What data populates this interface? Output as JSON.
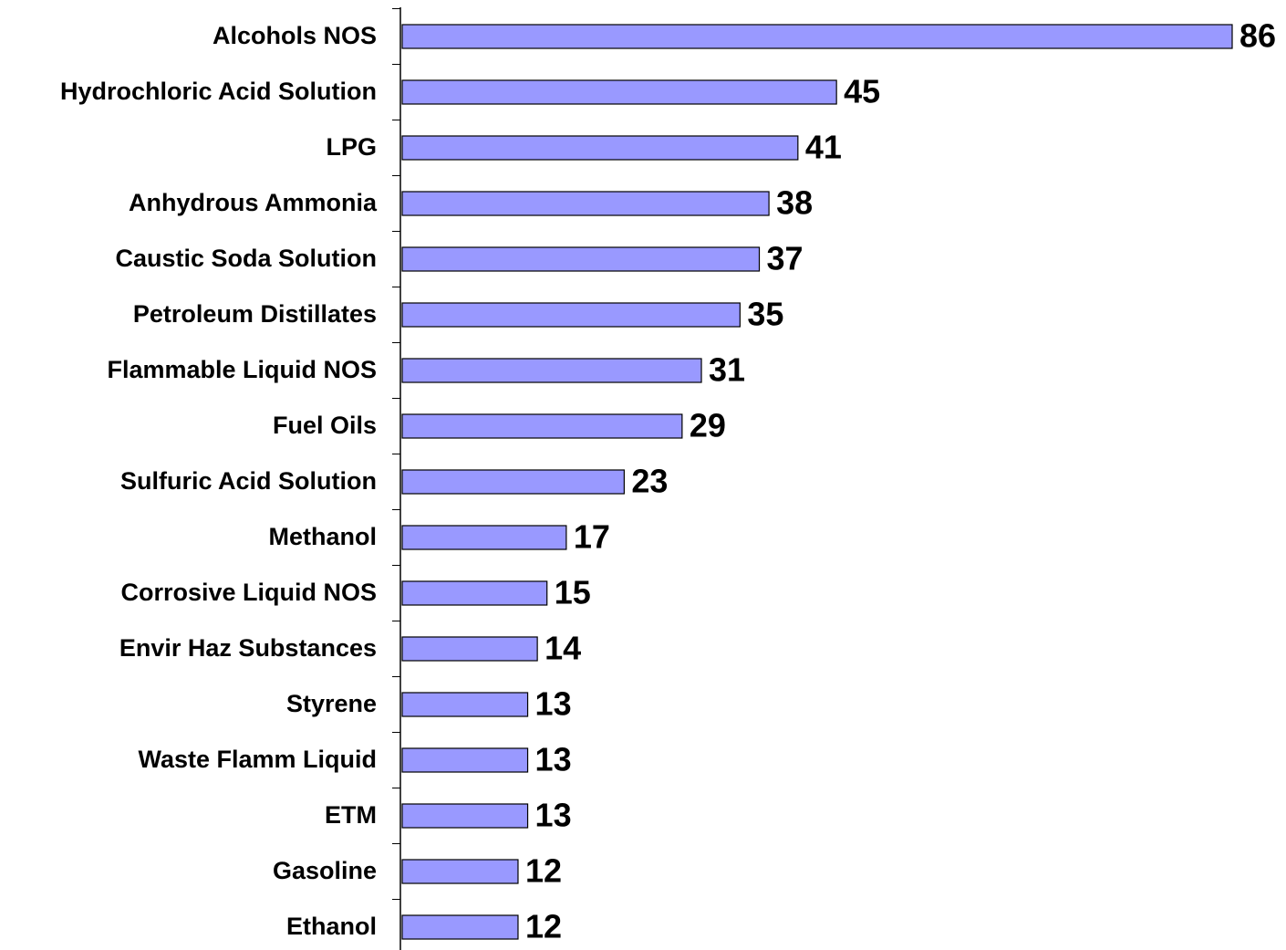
{
  "chart_data": {
    "type": "barh",
    "categories": [
      "Alcohols NOS",
      "Hydrochloric Acid Solution",
      "LPG",
      "Anhydrous Ammonia",
      "Caustic Soda Solution",
      "Petroleum Distillates",
      "Flammable Liquid NOS",
      "Fuel Oils",
      "Sulfuric Acid Solution",
      "Methanol",
      "Corrosive Liquid NOS",
      "Envir Haz Substances",
      "Styrene",
      "Waste Flamm Liquid",
      "ETM",
      "Gasoline",
      "Ethanol"
    ],
    "values": [
      86,
      45,
      41,
      38,
      37,
      35,
      31,
      29,
      23,
      17,
      15,
      14,
      13,
      13,
      13,
      12,
      12
    ],
    "color": "#9999ff"
  }
}
